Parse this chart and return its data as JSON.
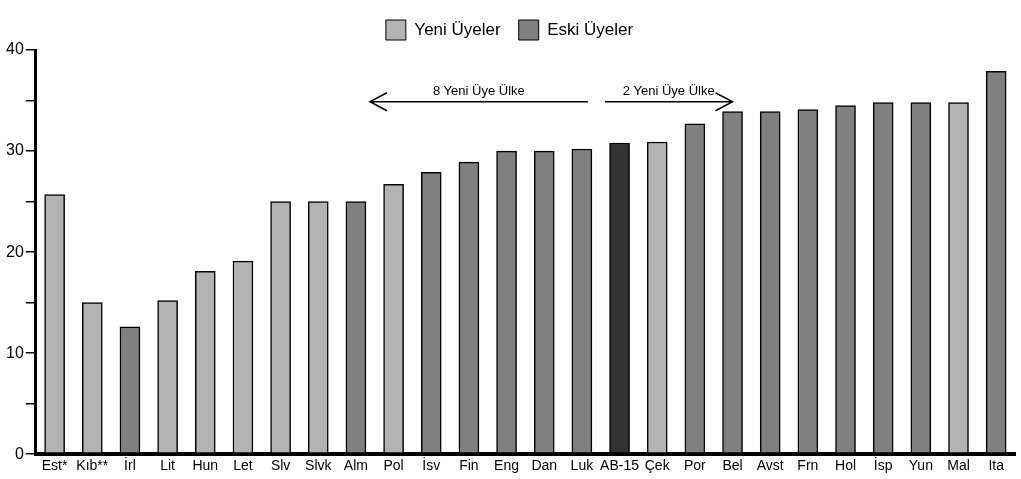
{
  "chart_data": {
    "type": "bar",
    "categories": [
      "Est*",
      "Kıb**",
      "İrl",
      "Lit",
      "Hun",
      "Let",
      "Slv",
      "Slvk",
      "Alm",
      "Pol",
      "İsv",
      "Fin",
      "Eng",
      "Dan",
      "Luk",
      "AB-15",
      "Çek",
      "Por",
      "Bel",
      "Avst",
      "Frn",
      "Hol",
      "İsp",
      "Yun",
      "Mal",
      "Ita"
    ],
    "series": [
      {
        "name": "Yeni Üyeler",
        "color": "#b3b3b3",
        "values": [
          25.7,
          15.0,
          null,
          15.2,
          18.1,
          19.1,
          25,
          25,
          null,
          26.7,
          null,
          null,
          null,
          null,
          null,
          null,
          30.9,
          null,
          null,
          null,
          null,
          null,
          null,
          null,
          34.8,
          null
        ]
      },
      {
        "name": "Eski Üyeler",
        "color": "#808080",
        "colors": [
          "#808080",
          "#808080",
          "#808080",
          "#808080",
          "#808080",
          "#808080",
          "#808080",
          "#808080",
          "#808080",
          "#808080",
          "#808080",
          "#808080",
          "#808080",
          "#808080",
          "#808080",
          "#333333",
          "#808080",
          "#808080",
          "#808080",
          "#808080",
          "#808080",
          "#808080",
          "#808080",
          "#808080",
          "#808080",
          "#808080"
        ],
        "values": [
          null,
          null,
          12.6,
          null,
          null,
          null,
          null,
          null,
          25,
          null,
          27.9,
          28.9,
          30.0,
          30.0,
          30.2,
          30.8,
          null,
          32.7,
          33.9,
          33.9,
          34.1,
          34.5,
          34.8,
          34.8,
          null,
          37.9
        ]
      }
    ],
    "ylim": [
      0,
      40
    ],
    "yticks": [
      0,
      {
        "value": 5,
        "label": null
      },
      10,
      {
        "value": 15,
        "label": null
      },
      20,
      {
        "value": 25,
        "label": null
      },
      30,
      {
        "value": 35,
        "label": null
      },
      40
    ],
    "grid": false,
    "legend": "top",
    "annotations": [
      "8 Yeni Üye Ülke",
      "2 Yeni Üye Ülke"
    ]
  }
}
